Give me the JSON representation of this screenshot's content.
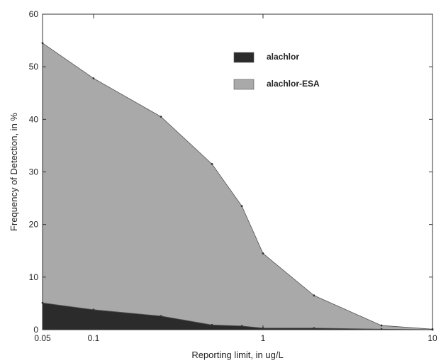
{
  "chart_data": {
    "type": "area",
    "xscale": "log",
    "xlabel": "Reporting limit, in ug/L",
    "ylabel": "Frequency of Detection, in %",
    "xlim": [
      0.05,
      10
    ],
    "ylim": [
      0,
      60
    ],
    "xticks": [
      0.05,
      0.1,
      1,
      10
    ],
    "xtick_labels": [
      "0.05",
      "0.1",
      "1",
      "10"
    ],
    "yticks": [
      0,
      10,
      20,
      30,
      40,
      50,
      60
    ],
    "ytick_labels": [
      "0",
      "10",
      "20",
      "30",
      "40",
      "50",
      "60"
    ],
    "grid": false,
    "legend_position": "top-right",
    "series": [
      {
        "name": "alachlor-ESA",
        "color": "#a9a9a9",
        "x": [
          0.05,
          0.1,
          0.25,
          0.5,
          0.75,
          1,
          2,
          5,
          10
        ],
        "values": [
          54.5,
          47.8,
          40.5,
          31.5,
          23.5,
          14.5,
          6.5,
          0.8,
          0.1
        ]
      },
      {
        "name": "alachlor",
        "color": "#2b2b2b",
        "x": [
          0.05,
          0.1,
          0.25,
          0.5,
          0.75,
          1,
          2,
          5,
          10
        ],
        "values": [
          5.1,
          3.8,
          2.6,
          0.9,
          0.7,
          0.3,
          0.3,
          0.1,
          0.0
        ]
      }
    ]
  }
}
